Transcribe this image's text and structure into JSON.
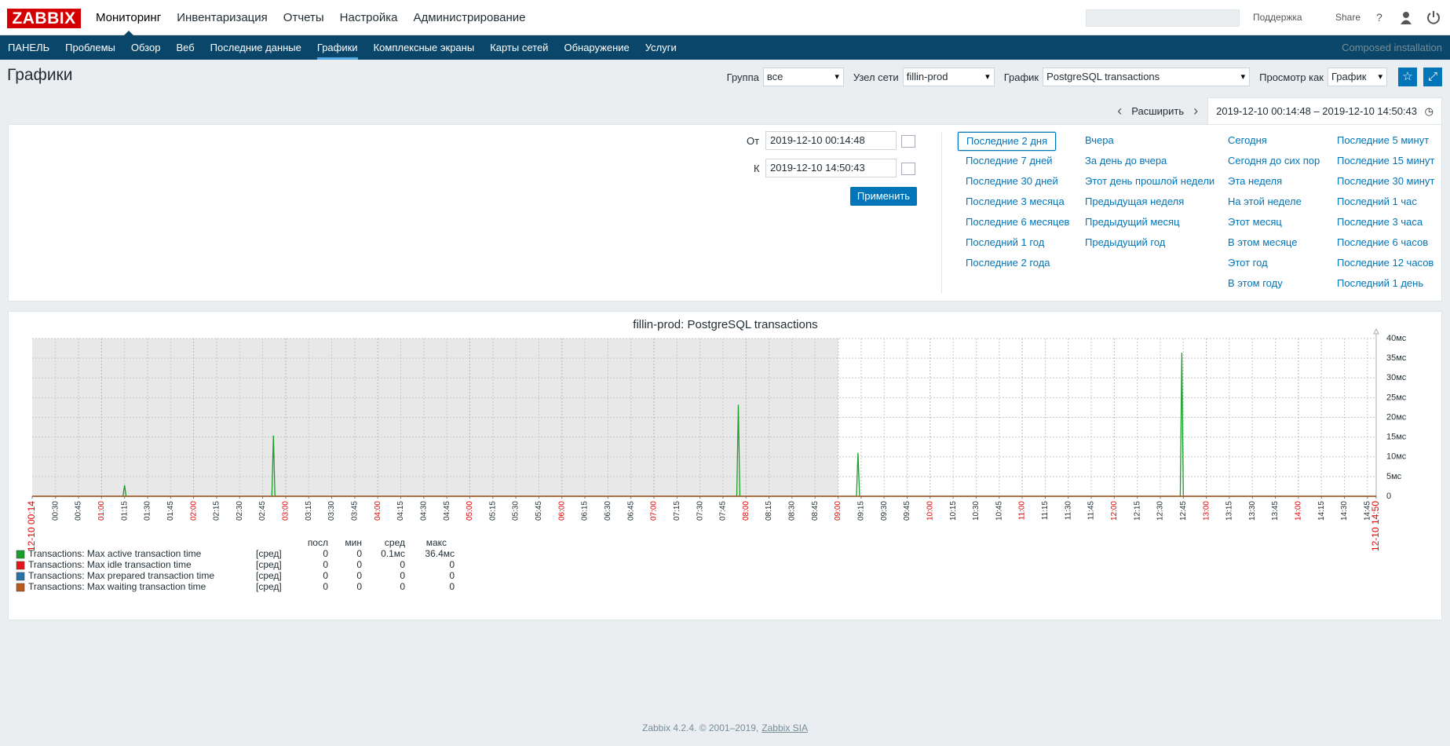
{
  "header": {
    "logo": "ZABBIX",
    "menu": [
      "Мониторинг",
      "Инвентаризация",
      "Отчеты",
      "Настройка",
      "Администрирование"
    ],
    "active": 0,
    "support": "Поддержка",
    "share": "Share",
    "help": "?"
  },
  "subnav": {
    "items": [
      "ПАНЕЛЬ",
      "Проблемы",
      "Обзор",
      "Веб",
      "Последние данные",
      "Графики",
      "Комплексные экраны",
      "Карты сетей",
      "Обнаружение",
      "Услуги"
    ],
    "active": 5,
    "server_name": "Composed installation"
  },
  "page_title": "Графики",
  "filters": [
    {
      "label": "Группа",
      "value": "все"
    },
    {
      "label": "Узел сети",
      "value": "fillin-prod"
    },
    {
      "label": "График",
      "value": "PostgreSQL transactions"
    },
    {
      "label": "Просмотр как",
      "value": "График"
    }
  ],
  "timebar": {
    "zoom_out": "Расширить",
    "range": "2019-12-10 00:14:48 – 2019-12-10 14:50:43"
  },
  "time_filter": {
    "from_label": "От",
    "from": "2019-12-10 00:14:48",
    "to_label": "К",
    "to": "2019-12-10 14:50:43",
    "apply": "Применить",
    "selected": "Последние 2 дня",
    "presets": [
      [
        "Последние 2 дня",
        "Последние 7 дней",
        "Последние 30 дней",
        "Последние 3 месяца",
        "Последние 6 месяцев",
        "Последний 1 год",
        "Последние 2 года"
      ],
      [
        "Вчера",
        "За день до вчера",
        "Этот день прошлой недели",
        "Предыдущая неделя",
        "Предыдущий месяц",
        "Предыдущий год"
      ],
      [
        "Сегодня",
        "Сегодня до сих пор",
        "Эта неделя",
        "На этой неделе",
        "Этот месяц",
        "В этом месяце",
        "Этот год",
        "В этом году"
      ],
      [
        "Последние 5 минут",
        "Последние 15 минут",
        "Последние 30 минут",
        "Последний 1 час",
        "Последние 3 часа",
        "Последние 6 часов",
        "Последние 12 часов",
        "Последний 1 день"
      ]
    ]
  },
  "chart_data": {
    "type": "line",
    "title": "fillin-prod: PostgreSQL transactions",
    "xlim": [
      14.8,
      890.7
    ],
    "ylim": [
      0,
      40
    ],
    "grid": true,
    "shaded_range": [
      14.8,
      540
    ],
    "yticks": [
      0,
      {
        "value": 5,
        "label": "5мс"
      },
      {
        "value": 10,
        "label": "10мс"
      },
      {
        "value": 15,
        "label": "15мс"
      },
      {
        "value": 20,
        "label": "20мс"
      },
      {
        "value": 25,
        "label": "25мс"
      },
      {
        "value": 30,
        "label": "30мс"
      },
      {
        "value": 35,
        "label": "35мс"
      },
      {
        "value": 40,
        "label": "40мс"
      }
    ],
    "xticks": [
      {
        "value": 14.8,
        "label": "12-10 00:14"
      },
      {
        "value": 30,
        "label": "00:30"
      },
      {
        "value": 45,
        "label": "00:45"
      },
      {
        "value": 60,
        "label": "01:00"
      },
      {
        "value": 75,
        "label": "01:15"
      },
      {
        "value": 90,
        "label": "01:30"
      },
      {
        "value": 105,
        "label": "01:45"
      },
      {
        "value": 120,
        "label": "02:00"
      },
      {
        "value": 135,
        "label": "02:15"
      },
      {
        "value": 150,
        "label": "02:30"
      },
      {
        "value": 165,
        "label": "02:45"
      },
      {
        "value": 180,
        "label": "03:00"
      },
      {
        "value": 195,
        "label": "03:15"
      },
      {
        "value": 210,
        "label": "03:30"
      },
      {
        "value": 225,
        "label": "03:45"
      },
      {
        "value": 240,
        "label": "04:00"
      },
      {
        "value": 255,
        "label": "04:15"
      },
      {
        "value": 270,
        "label": "04:30"
      },
      {
        "value": 285,
        "label": "04:45"
      },
      {
        "value": 300,
        "label": "05:00"
      },
      {
        "value": 315,
        "label": "05:15"
      },
      {
        "value": 330,
        "label": "05:30"
      },
      {
        "value": 345,
        "label": "05:45"
      },
      {
        "value": 360,
        "label": "06:00"
      },
      {
        "value": 375,
        "label": "06:15"
      },
      {
        "value": 390,
        "label": "06:30"
      },
      {
        "value": 405,
        "label": "06:45"
      },
      {
        "value": 420,
        "label": "07:00"
      },
      {
        "value": 435,
        "label": "07:15"
      },
      {
        "value": 450,
        "label": "07:30"
      },
      {
        "value": 465,
        "label": "07:45"
      },
      {
        "value": 480,
        "label": "08:00"
      },
      {
        "value": 495,
        "label": "08:15"
      },
      {
        "value": 510,
        "label": "08:30"
      },
      {
        "value": 525,
        "label": "08:45"
      },
      {
        "value": 540,
        "label": "09:00"
      },
      {
        "value": 555,
        "label": "09:15"
      },
      {
        "value": 570,
        "label": "09:30"
      },
      {
        "value": 585,
        "label": "09:45"
      },
      {
        "value": 600,
        "label": "10:00"
      },
      {
        "value": 615,
        "label": "10:15"
      },
      {
        "value": 630,
        "label": "10:30"
      },
      {
        "value": 645,
        "label": "10:45"
      },
      {
        "value": 660,
        "label": "11:00"
      },
      {
        "value": 675,
        "label": "11:15"
      },
      {
        "value": 690,
        "label": "11:30"
      },
      {
        "value": 705,
        "label": "11:45"
      },
      {
        "value": 720,
        "label": "12:00"
      },
      {
        "value": 735,
        "label": "12:15"
      },
      {
        "value": 750,
        "label": "12:30"
      },
      {
        "value": 765,
        "label": "12:45"
      },
      {
        "value": 780,
        "label": "13:00"
      },
      {
        "value": 795,
        "label": "13:15"
      },
      {
        "value": 810,
        "label": "13:30"
      },
      {
        "value": 825,
        "label": "13:45"
      },
      {
        "value": 840,
        "label": "14:00"
      },
      {
        "value": 855,
        "label": "14:15"
      },
      {
        "value": 870,
        "label": "14:30"
      },
      {
        "value": 885,
        "label": "14:45"
      },
      {
        "value": 890.7,
        "label": "12-10 14:50"
      }
    ],
    "legend_headers": [
      "посл",
      "мин",
      "сред",
      "макс"
    ],
    "series": [
      {
        "name": "Transactions: Max active transaction time",
        "color": "#1a9e2a",
        "func": "[сред]",
        "last": "0",
        "min": "0",
        "avg": "0.1мс",
        "max": "36.4мс",
        "x": [
          14.8,
          74,
          75,
          76,
          171,
          172,
          173,
          474,
          475,
          476,
          552,
          553,
          554,
          763,
          764,
          765,
          890.7
        ],
        "values": [
          0,
          0,
          2.8,
          0,
          0,
          15.4,
          0,
          0,
          23.2,
          0,
          0,
          11,
          0,
          0,
          36.4,
          0,
          0
        ]
      },
      {
        "name": "Transactions: Max idle transaction time",
        "color": "#e8141a",
        "func": "[сред]",
        "last": "0",
        "min": "0",
        "avg": "0",
        "max": "0",
        "x": [
          14.8,
          890.7
        ],
        "values": [
          0,
          0
        ]
      },
      {
        "name": "Transactions: Max prepared transaction time",
        "color": "#2774a4",
        "func": "[сред]",
        "last": "0",
        "min": "0",
        "avg": "0",
        "max": "0",
        "x": [
          14.8,
          890.7
        ],
        "values": [
          0,
          0
        ]
      },
      {
        "name": "Transactions: Max waiting transaction time",
        "color": "#b85a1c",
        "func": "[сред]",
        "last": "0",
        "min": "0",
        "avg": "0",
        "max": "0",
        "x": [
          14.8,
          890.7
        ],
        "values": [
          0,
          0
        ]
      }
    ]
  },
  "footer": {
    "text": "Zabbix 4.2.4. © 2001–2019,",
    "link": "Zabbix SIA"
  }
}
